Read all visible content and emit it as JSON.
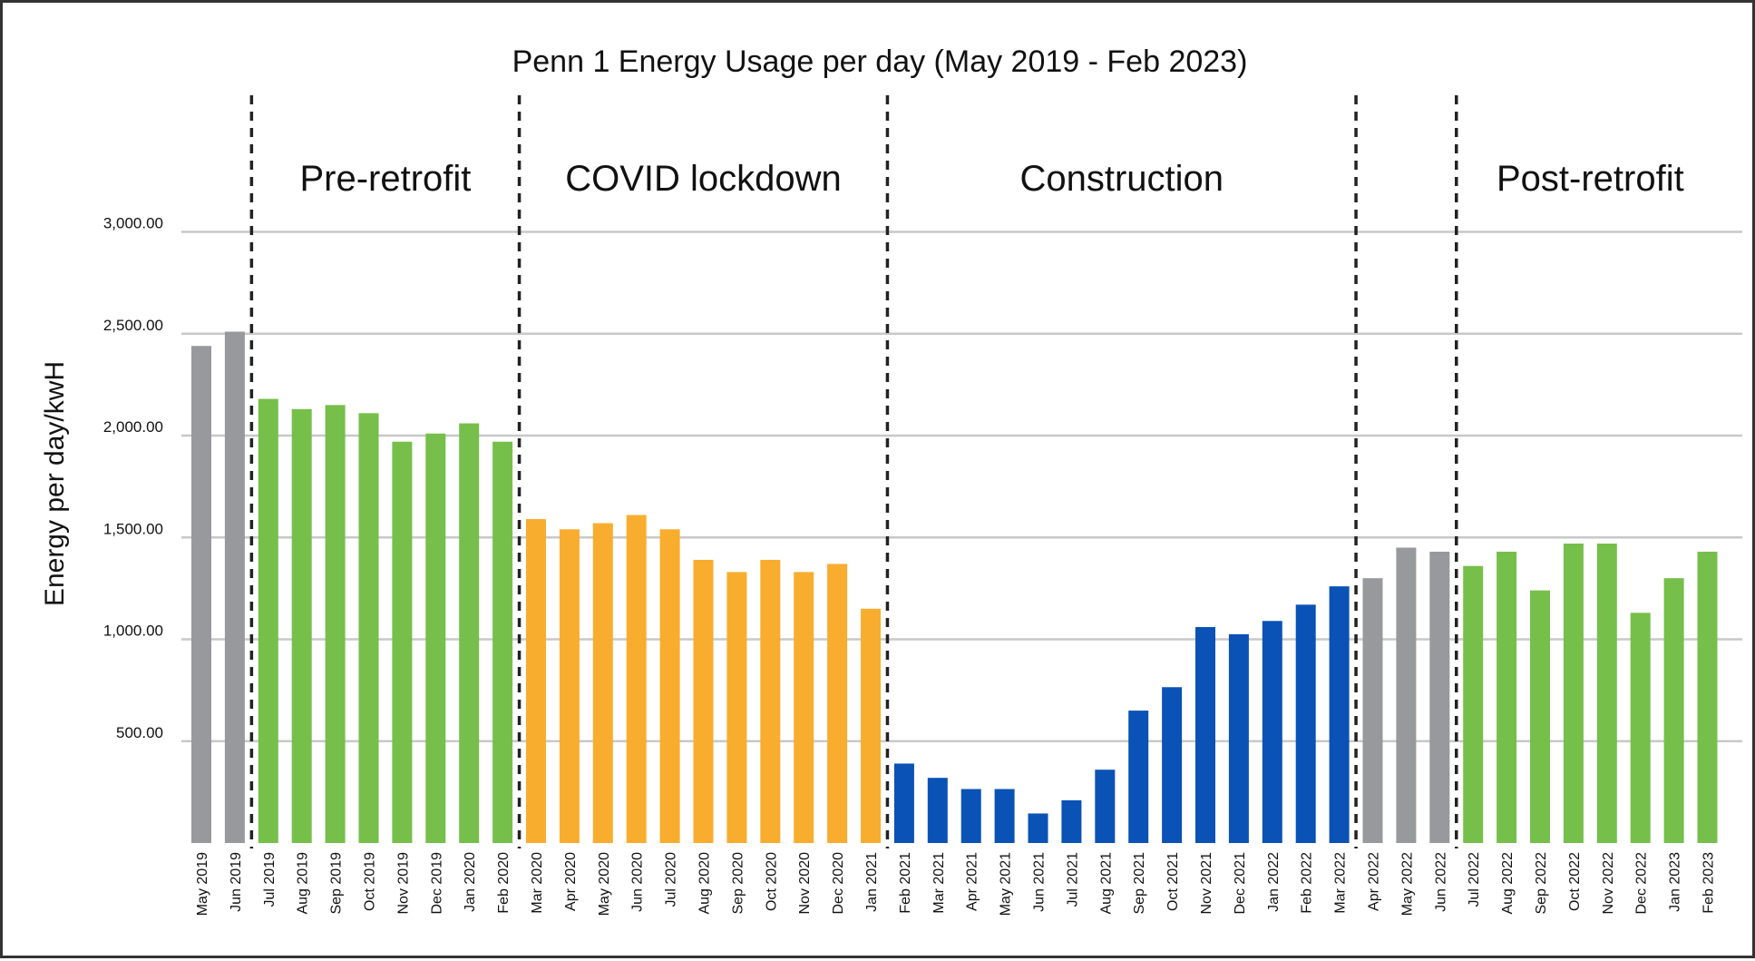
{
  "chart_data": {
    "type": "bar",
    "title": "Penn 1 Energy Usage per day (May 2019 - Feb 2023)",
    "xlabel": "",
    "ylabel": "Energy per day/kwH",
    "ylim": [
      0,
      3000
    ],
    "yticks": [
      {
        "value": 500,
        "label": "500.00"
      },
      {
        "value": 1000,
        "label": "1,000.00"
      },
      {
        "value": 1500,
        "label": "1,500.00"
      },
      {
        "value": 2000,
        "label": "2,000.00"
      },
      {
        "value": 2500,
        "label": "2,500.00"
      },
      {
        "value": 3000,
        "label": "3,000.00"
      }
    ],
    "grid": true,
    "legend": "none",
    "colors": {
      "gray": "#98999c",
      "green": "#76bf4b",
      "orange": "#f8ad2f",
      "blue": "#0a52b5",
      "grid": "#c8c8c8",
      "divider": "#222222"
    },
    "categories": [
      "May 2019",
      "Jun 2019",
      "Jul 2019",
      "Aug 2019",
      "Sep 2019",
      "Oct 2019",
      "Nov 2019",
      "Dec 2019",
      "Jan 2020",
      "Feb 2020",
      "Mar 2020",
      "Apr 2020",
      "May 2020",
      "Jun 2020",
      "Jul 2020",
      "Aug 2020",
      "Sep 2020",
      "Oct 2020",
      "Nov 2020",
      "Dec 2020",
      "Jan 2021",
      "Feb 2021",
      "Mar 2021",
      "Apr 2021",
      "May 2021",
      "Jun 2021",
      "Jul 2021",
      "Aug 2021",
      "Sep 2021",
      "Oct 2021",
      "Nov 2021",
      "Dec 2021",
      "Jan 2022",
      "Feb 2022",
      "Mar 2022",
      "Apr 2022",
      "May 2022",
      "Jun 2022",
      "Jul 2022",
      "Aug 2022",
      "Sep 2022",
      "Oct 2022",
      "Nov 2022",
      "Dec 2022",
      "Jan 2023",
      "Feb 2023"
    ],
    "values": [
      2440,
      2510,
      2180,
      2130,
      2150,
      2110,
      1970,
      2010,
      2060,
      1970,
      1590,
      1540,
      1570,
      1610,
      1540,
      1390,
      1330,
      1390,
      1330,
      1370,
      1150,
      390,
      320,
      265,
      265,
      145,
      210,
      360,
      650,
      765,
      1060,
      1025,
      1090,
      1170,
      1260,
      1300,
      1450,
      1430,
      1360,
      1430,
      1240,
      1470,
      1470,
      1130,
      1300,
      1430
    ],
    "bar_colors": [
      "gray",
      "gray",
      "green",
      "green",
      "green",
      "green",
      "green",
      "green",
      "green",
      "green",
      "orange",
      "orange",
      "orange",
      "orange",
      "orange",
      "orange",
      "orange",
      "orange",
      "orange",
      "orange",
      "orange",
      "blue",
      "blue",
      "blue",
      "blue",
      "blue",
      "blue",
      "blue",
      "blue",
      "blue",
      "blue",
      "blue",
      "blue",
      "blue",
      "blue",
      "gray",
      "gray",
      "gray",
      "green",
      "green",
      "green",
      "green",
      "green",
      "green",
      "green",
      "green"
    ],
    "phases": [
      {
        "label": "Pre-retrofit",
        "start_index": 2,
        "end_index": 9
      },
      {
        "label": "COVID lockdown",
        "start_index": 10,
        "end_index": 20
      },
      {
        "label": "Construction",
        "start_index": 21,
        "end_index": 34
      },
      {
        "label": "",
        "start_index": 35,
        "end_index": 37
      },
      {
        "label": "Post-retrofit",
        "start_index": 38,
        "end_index": 45
      }
    ],
    "dividers_after_index": [
      1,
      9,
      20,
      34,
      37
    ]
  }
}
